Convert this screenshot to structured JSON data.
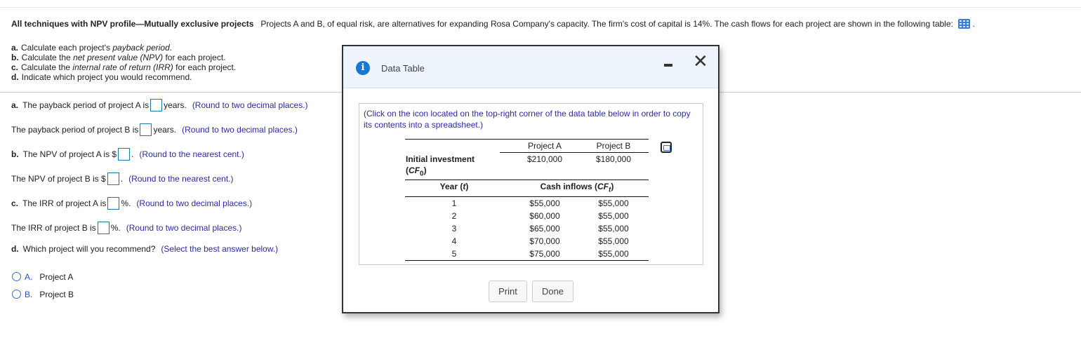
{
  "intro": {
    "title": "All techniques with NPV profile—Mutually exclusive projects",
    "text": "Projects A and B, of equal risk, are alternatives for expanding Rosa Company's capacity.  The firm's cost of capital is 14%.  The cash flows for each project are shown in the following table:",
    "end": ".",
    "icon": "table-icon"
  },
  "tasks": [
    {
      "letter": "a.",
      "pre": "Calculate each project's ",
      "em": "payback period",
      "post": "."
    },
    {
      "letter": "b.",
      "pre": "Calculate the ",
      "em": "net present value (NPV)",
      "post": " for each project."
    },
    {
      "letter": "c.",
      "pre": "Calculate the ",
      "em": "internal rate of return (IRR)",
      "post": " for each project."
    },
    {
      "letter": "d.",
      "pre": "Indicate which project you would recommend.",
      "em": "",
      "post": ""
    }
  ],
  "questions": [
    {
      "letter": "a.",
      "pre": "The payback period of project A is",
      "post": "years.",
      "hint": "(Round to two decimal places.)",
      "value": ""
    },
    {
      "letter": "",
      "pre": "The payback period of project B is",
      "post": "years.",
      "hint": "(Round to two decimal places.)",
      "value": ""
    },
    {
      "letter": "b.",
      "pre": "The NPV of project A is $",
      "post": ".",
      "hint": "(Round to the nearest cent.)",
      "value": ""
    },
    {
      "letter": "",
      "pre": "The NPV of project B is $",
      "post": ".",
      "hint": "(Round to the nearest cent.)",
      "value": ""
    },
    {
      "letter": "c.",
      "pre": "The IRR of project A is",
      "post": "%.",
      "hint": "(Round to two decimal places.)",
      "value": ""
    },
    {
      "letter": "",
      "pre": "The IRR of project B is",
      "post": "%.",
      "hint": "(Round to two decimal places.)",
      "value": ""
    },
    {
      "letter": "d.",
      "pre": "Which project will you recommend?",
      "post": "",
      "hint": "(Select the best answer below.)"
    }
  ],
  "options": [
    {
      "letter": "A.",
      "label": "Project A",
      "selected": false
    },
    {
      "letter": "B.",
      "label": "Project B",
      "selected": false
    }
  ],
  "modal": {
    "title": "Data Table",
    "note": "(Click on the icon located on the top-right corner of the data table below in order to copy its contents into a spreadsheet.)",
    "table": {
      "col_a": "Project A",
      "col_b": "Project B",
      "initial_label": "Initial investment",
      "initial_sub": "(CF0)",
      "initial_a": "$210,000",
      "initial_b": "$180,000",
      "year_header": "Year (t)",
      "inflows_header": "Cash inflows (CFt)",
      "rows": [
        {
          "year": "1",
          "a": "$55,000",
          "b": "$55,000"
        },
        {
          "year": "2",
          "a": "$60,000",
          "b": "$55,000"
        },
        {
          "year": "3",
          "a": "$65,000",
          "b": "$55,000"
        },
        {
          "year": "4",
          "a": "$70,000",
          "b": "$55,000"
        },
        {
          "year": "5",
          "a": "$75,000",
          "b": "$55,000"
        }
      ]
    },
    "print_label": "Print",
    "done_label": "Done"
  }
}
